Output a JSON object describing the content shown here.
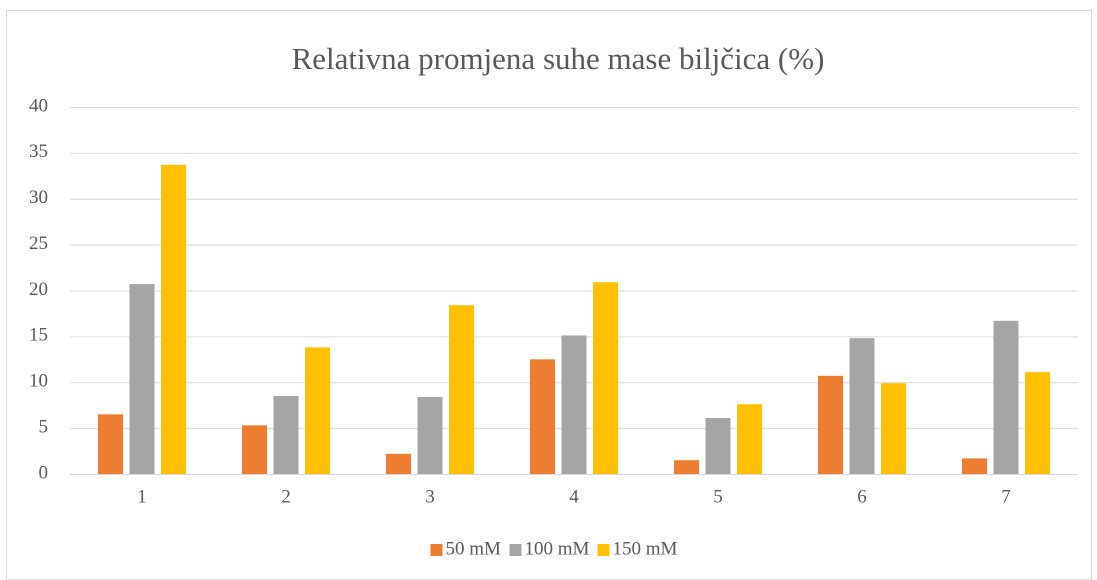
{
  "chart_data": {
    "type": "bar",
    "title": "Relativna promjena suhe mase biljčica (%)",
    "categories": [
      "1",
      "2",
      "3",
      "4",
      "5",
      "6",
      "7"
    ],
    "series": [
      {
        "name": "50 mM",
        "color": "#ed7d31",
        "values": [
          6.5,
          5.3,
          2.2,
          12.5,
          1.5,
          10.7,
          1.7
        ]
      },
      {
        "name": "100 mM",
        "color": "#a5a5a5",
        "values": [
          20.7,
          8.5,
          8.4,
          15.1,
          6.1,
          14.8,
          16.7
        ]
      },
      {
        "name": "150 mM",
        "color": "#ffc000",
        "values": [
          33.7,
          13.8,
          18.4,
          20.9,
          7.6,
          9.9,
          11.1
        ]
      }
    ],
    "ylim": [
      0,
      40
    ],
    "yticks": [
      0,
      5,
      10,
      15,
      20,
      25,
      30,
      35,
      40
    ],
    "grid": true,
    "legend": "bottom"
  }
}
